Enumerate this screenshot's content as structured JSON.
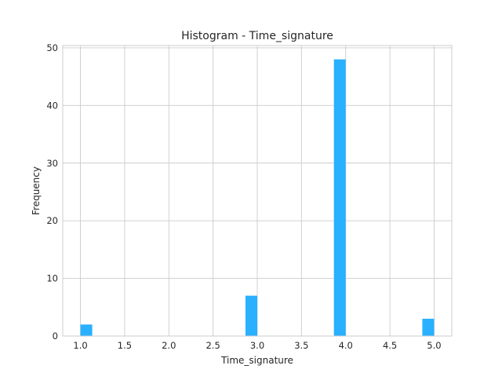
{
  "chart_data": {
    "type": "bar",
    "title": "Histogram - Time_signature",
    "xlabel": "Time_signature",
    "ylabel": "Frequency",
    "xlim": [
      0.8,
      5.2
    ],
    "ylim": [
      0,
      50.4
    ],
    "x_ticks": [
      "1.0",
      "1.5",
      "2.0",
      "2.5",
      "3.0",
      "3.5",
      "4.0",
      "4.5",
      "5.0"
    ],
    "y_ticks": [
      "0",
      "10",
      "20",
      "30",
      "40",
      "50"
    ],
    "grid": true,
    "bin_width": 0.1333,
    "bins": [
      {
        "start": 1.0,
        "end": 1.1333,
        "value": 2
      },
      {
        "start": 2.8667,
        "end": 3.0,
        "value": 7
      },
      {
        "start": 3.8667,
        "end": 4.0,
        "value": 48
      },
      {
        "start": 4.8667,
        "end": 5.0,
        "value": 3
      }
    ],
    "bar_color": "#29b0ff"
  }
}
